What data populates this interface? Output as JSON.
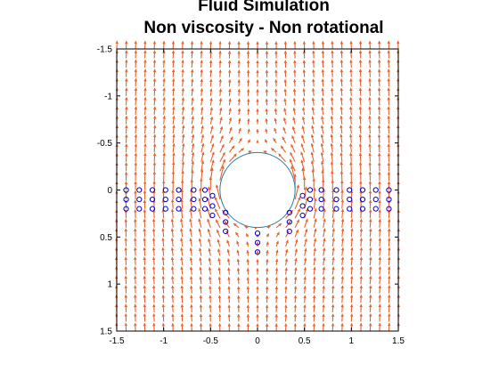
{
  "chart_data": {
    "type": "quiver",
    "title": [
      "Fluid Simulation",
      "Non viscosity - Non rotational"
    ],
    "xlabel": "",
    "ylabel": "",
    "xlim": [
      -1.5,
      1.5
    ],
    "ylim": [
      -1.5,
      1.5
    ],
    "y_axis_reversed": true,
    "x_ticks": [
      "-1.5",
      "-1",
      "-0.5",
      "0",
      "0.5",
      "1",
      "1.5"
    ],
    "y_ticks": [
      "-1.5",
      "-1",
      "-0.5",
      "0",
      "0.5",
      "1",
      "1.5"
    ],
    "grid": false,
    "legend": "none",
    "colors": {
      "arrows": "#e8622c",
      "cylinder": "#2a7fa6",
      "particles": "#0000cc",
      "axes": "#000000"
    },
    "flow": {
      "uniform_speed": 1.0,
      "direction": "toward negative y (upward on screen)"
    },
    "obstacle": {
      "shape": "circle",
      "center": [
        0,
        0
      ],
      "radius": 0.4
    },
    "particles": [
      [
        -1.4,
        0.0
      ],
      [
        -1.4,
        0.1
      ],
      [
        -1.4,
        0.2
      ],
      [
        -1.26,
        0.0
      ],
      [
        -1.26,
        0.1
      ],
      [
        -1.26,
        0.2
      ],
      [
        -1.12,
        0.0
      ],
      [
        -1.12,
        0.1
      ],
      [
        -1.12,
        0.2
      ],
      [
        -0.98,
        0.0
      ],
      [
        -0.98,
        0.1
      ],
      [
        -0.98,
        0.2
      ],
      [
        -0.84,
        0.0
      ],
      [
        -0.84,
        0.1
      ],
      [
        -0.84,
        0.2
      ],
      [
        -0.68,
        0.0
      ],
      [
        -0.68,
        0.1
      ],
      [
        -0.68,
        0.2
      ],
      [
        -0.56,
        0.0
      ],
      [
        -0.56,
        0.1
      ],
      [
        -0.56,
        0.2
      ],
      [
        -0.48,
        0.06
      ],
      [
        -0.48,
        0.17
      ],
      [
        -0.48,
        0.27
      ],
      [
        -0.34,
        0.24
      ],
      [
        -0.34,
        0.34
      ],
      [
        -0.34,
        0.44
      ],
      [
        0.0,
        0.46
      ],
      [
        0.0,
        0.56
      ],
      [
        0.0,
        0.66
      ],
      [
        0.34,
        0.24
      ],
      [
        0.34,
        0.34
      ],
      [
        0.34,
        0.44
      ],
      [
        0.48,
        0.06
      ],
      [
        0.48,
        0.17
      ],
      [
        0.48,
        0.27
      ],
      [
        0.56,
        0.0
      ],
      [
        0.56,
        0.1
      ],
      [
        0.56,
        0.2
      ],
      [
        0.68,
        0.0
      ],
      [
        0.68,
        0.1
      ],
      [
        0.68,
        0.2
      ],
      [
        0.84,
        0.0
      ],
      [
        0.84,
        0.1
      ],
      [
        0.84,
        0.2
      ],
      [
        0.98,
        0.0
      ],
      [
        0.98,
        0.1
      ],
      [
        0.98,
        0.2
      ],
      [
        1.12,
        0.0
      ],
      [
        1.12,
        0.1
      ],
      [
        1.12,
        0.2
      ],
      [
        1.26,
        0.0
      ],
      [
        1.26,
        0.1
      ],
      [
        1.26,
        0.2
      ],
      [
        1.4,
        0.0
      ],
      [
        1.4,
        0.1
      ],
      [
        1.4,
        0.2
      ]
    ]
  }
}
